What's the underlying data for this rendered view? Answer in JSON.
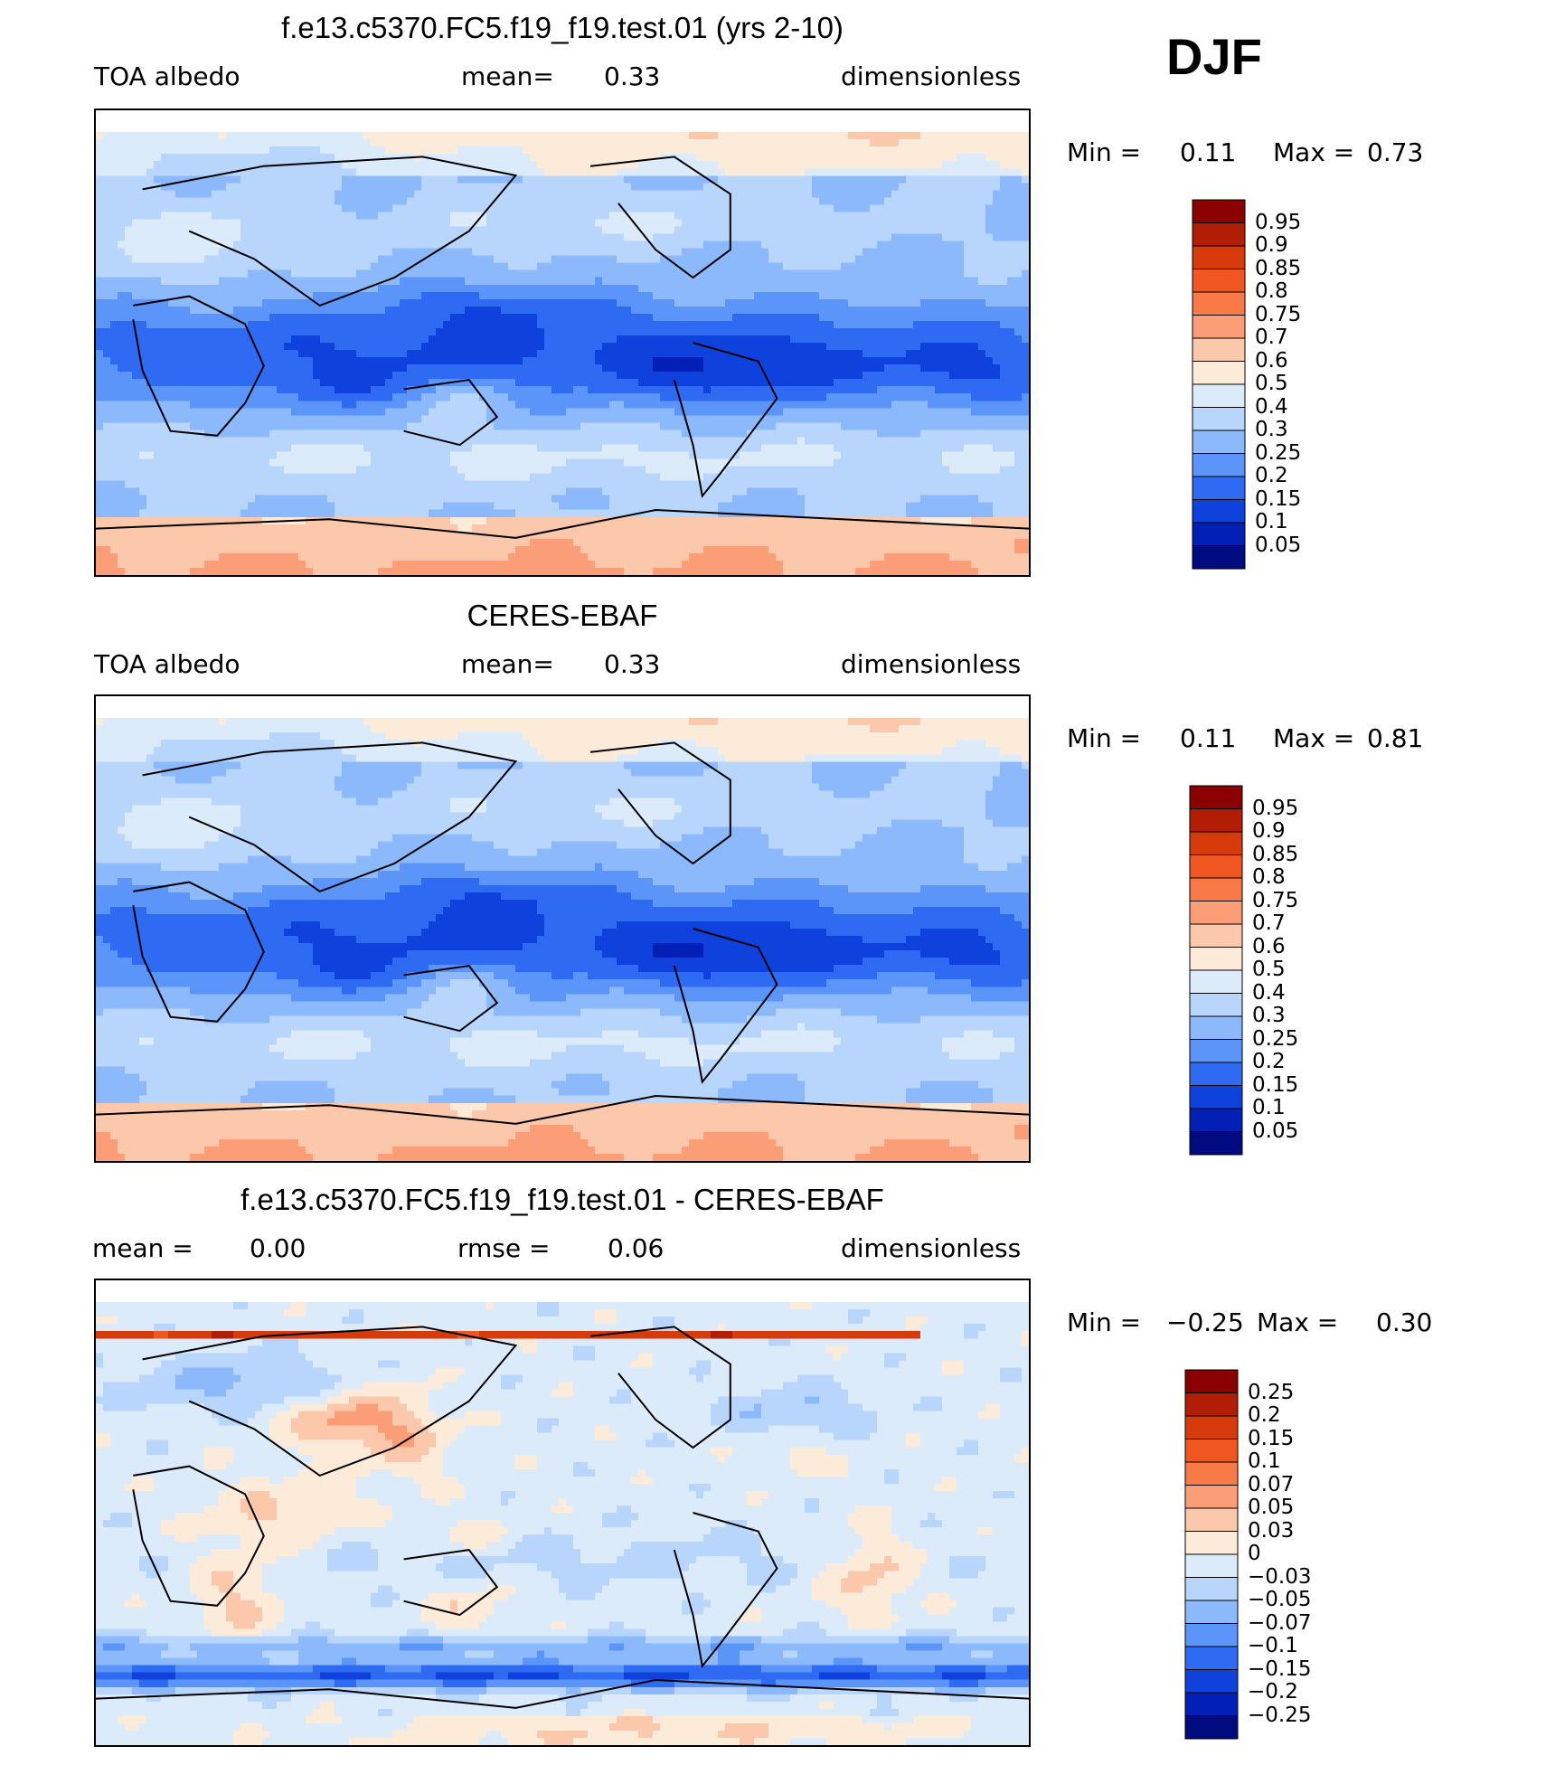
{
  "season_label": "DJF",
  "chart_data": [
    {
      "type": "heatmap",
      "title": "f.e13.c5370.FC5.f19_f19.test.01 (yrs 2-10)",
      "left_label": "TOA albedo",
      "center_label": "mean=",
      "center_value": "0.33",
      "right_label": "dimensionless",
      "min_label": "Min =",
      "min_value": "0.11",
      "max_label": "Max =",
      "max_value": "0.73",
      "colorbar_levels": [
        "0.95",
        "0.9",
        "0.85",
        "0.8",
        "0.75",
        "0.7",
        "0.6",
        "0.5",
        "0.4",
        "0.3",
        "0.25",
        "0.2",
        "0.15",
        "0.1",
        "0.05"
      ],
      "colorbar_colors": [
        "#8b0000",
        "#b21e05",
        "#d73a0b",
        "#f0561f",
        "#f97a47",
        "#fb9e78",
        "#fcc8ab",
        "#fdebd9",
        "#dcebfa",
        "#b8d6fb",
        "#8cb9fb",
        "#5b95fa",
        "#2f6af2",
        "#0f42dd",
        "#0220b5",
        "#000b80"
      ]
    },
    {
      "type": "heatmap",
      "title": "CERES-EBAF",
      "left_label": "TOA albedo",
      "center_label": "mean=",
      "center_value": "0.33",
      "right_label": "dimensionless",
      "min_label": "Min =",
      "min_value": "0.11",
      "max_label": "Max =",
      "max_value": "0.81",
      "colorbar_levels": [
        "0.95",
        "0.9",
        "0.85",
        "0.8",
        "0.75",
        "0.7",
        "0.6",
        "0.5",
        "0.4",
        "0.3",
        "0.25",
        "0.2",
        "0.15",
        "0.1",
        "0.05"
      ],
      "colorbar_colors": [
        "#8b0000",
        "#b21e05",
        "#d73a0b",
        "#f0561f",
        "#f97a47",
        "#fb9e78",
        "#fcc8ab",
        "#fdebd9",
        "#dcebfa",
        "#b8d6fb",
        "#8cb9fb",
        "#5b95fa",
        "#2f6af2",
        "#0f42dd",
        "#0220b5",
        "#000b80"
      ]
    },
    {
      "type": "heatmap",
      "title": "f.e13.c5370.FC5.f19_f19.test.01 - CERES-EBAF",
      "left_label": "mean =",
      "left_value": "0.00",
      "center_label": "rmse =",
      "center_value": "0.06",
      "right_label": "dimensionless",
      "min_label": "Min =",
      "min_value": "−0.25",
      "max_label": "Max =",
      "max_value": "0.30",
      "colorbar_levels": [
        "0.25",
        "0.2",
        "0.15",
        "0.1",
        "0.07",
        "0.05",
        "0.03",
        "0",
        "−0.03",
        "−0.05",
        "−0.07",
        "−0.1",
        "−0.15",
        "−0.2",
        "−0.25"
      ],
      "colorbar_colors": [
        "#8b0000",
        "#b21e05",
        "#d73a0b",
        "#f0561f",
        "#f97a47",
        "#fb9e78",
        "#fcc8ab",
        "#fdebd9",
        "#dcebfa",
        "#b8d6fb",
        "#8cb9fb",
        "#5b95fa",
        "#2f6af2",
        "#0f42dd",
        "#0220b5",
        "#000b80"
      ]
    }
  ]
}
